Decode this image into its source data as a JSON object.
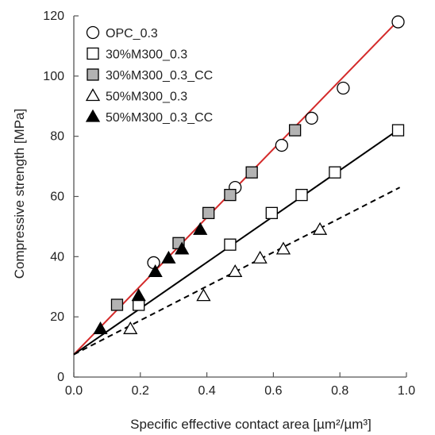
{
  "chart_data": {
    "type": "scatter",
    "xlabel": "Specific effective contact area [µm²/µm³]",
    "ylabel": "Compressive strength [MPa]",
    "xlim": [
      0.0,
      1.0
    ],
    "ylim": [
      0,
      120
    ],
    "xticks": [
      "0.0",
      "0.2",
      "0.4",
      "0.6",
      "0.8",
      "1.0"
    ],
    "yticks": [
      "0",
      "20",
      "40",
      "60",
      "80",
      "100",
      "120"
    ],
    "xtick_values": [
      0.0,
      0.2,
      0.4,
      0.6,
      0.8,
      1.0
    ],
    "ytick_values": [
      0,
      20,
      40,
      60,
      80,
      100,
      120
    ],
    "grid": false,
    "legend_position": "top-left",
    "series": [
      {
        "name": "OPC_0.3",
        "marker": "circle-open",
        "points": [
          [
            0.24,
            38
          ],
          [
            0.485,
            63
          ],
          [
            0.625,
            77
          ],
          [
            0.715,
            86
          ],
          [
            0.81,
            96
          ],
          [
            0.975,
            118
          ]
        ]
      },
      {
        "name": "30%M300_0.3",
        "marker": "square-open",
        "points": [
          [
            0.195,
            24
          ],
          [
            0.47,
            44
          ],
          [
            0.595,
            54.5
          ],
          [
            0.685,
            60.5
          ],
          [
            0.785,
            68
          ],
          [
            0.975,
            82
          ]
        ]
      },
      {
        "name": "30%M300_0.3_CC",
        "marker": "square-filled",
        "points": [
          [
            0.13,
            24
          ],
          [
            0.315,
            44.5
          ],
          [
            0.405,
            54.5
          ],
          [
            0.47,
            60.5
          ],
          [
            0.535,
            68
          ],
          [
            0.665,
            82
          ]
        ]
      },
      {
        "name": "50%M300_0.3",
        "marker": "triangle-open",
        "points": [
          [
            0.17,
            16
          ],
          [
            0.39,
            27
          ],
          [
            0.485,
            35
          ],
          [
            0.56,
            39.5
          ],
          [
            0.63,
            42.5
          ],
          [
            0.74,
            49
          ]
        ]
      },
      {
        "name": "50%M300_0.3_CC",
        "marker": "triangle-filled",
        "points": [
          [
            0.08,
            16
          ],
          [
            0.195,
            27
          ],
          [
            0.245,
            35
          ],
          [
            0.285,
            39.5
          ],
          [
            0.325,
            42.5
          ],
          [
            0.38,
            49
          ]
        ]
      }
    ],
    "fit_lines": [
      {
        "style": "solid",
        "color": "#d42a2a",
        "from": [
          0.0,
          7.5
        ],
        "to": [
          0.98,
          119
        ]
      },
      {
        "style": "solid",
        "color": "#000000",
        "from": [
          0.0,
          7.5
        ],
        "to": [
          0.98,
          82.5
        ]
      },
      {
        "style": "dashed",
        "color": "#000000",
        "from": [
          0.0,
          7.5
        ],
        "to": [
          0.98,
          63
        ]
      }
    ],
    "colors": {
      "axis": "#555555",
      "marker_stroke": "#000000",
      "marker_open_fill": "#ffffff",
      "marker_square_filled": "#b3b3b3",
      "marker_triangle_filled": "#000000"
    }
  }
}
